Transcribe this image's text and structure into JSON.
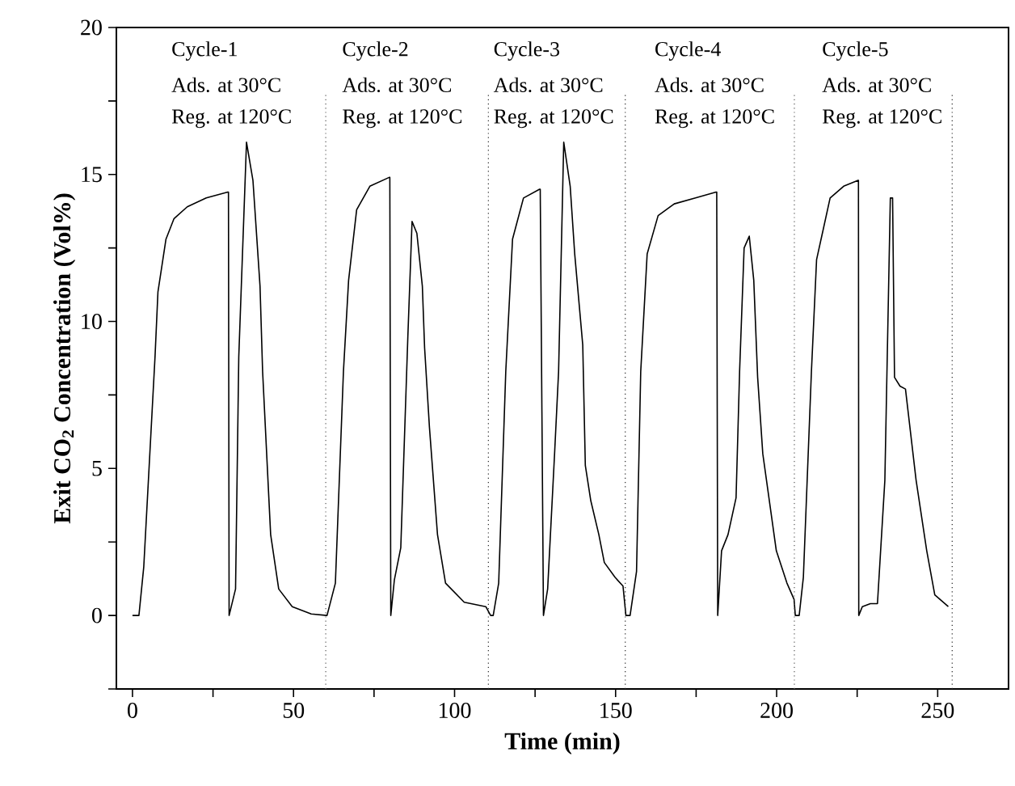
{
  "chart_data": {
    "type": "line",
    "xlabel": "Time (min)",
    "ylabel": "Exit CO$_{2}$ Concentration (Vol%)",
    "xlim": [
      -5,
      272
    ],
    "ylim": [
      -2.5,
      20
    ],
    "xticks": [
      0,
      {
        "value": 25,
        "label": null
      },
      50,
      {
        "value": 75,
        "label": null
      },
      100,
      {
        "value": 125,
        "label": null
      },
      150,
      {
        "value": 175,
        "label": null
      },
      200,
      {
        "value": 225,
        "label": null
      },
      250
    ],
    "yticks": [
      {
        "value": -2.5,
        "label": null
      },
      0,
      {
        "value": 2.5,
        "label": null
      },
      5,
      {
        "value": 7.5,
        "label": null
      },
      10,
      {
        "value": 12.5,
        "label": null
      },
      15,
      {
        "value": 17.5,
        "label": null
      },
      20
    ],
    "marker": "none",
    "line_style": "solid",
    "annotations": [
      "Cycle-1",
      "Ads. at 30°C",
      "Reg. at 120°C",
      "Cycle-2",
      "Ads. at 30°C",
      "Reg. at 120°C",
      "Cycle-3",
      "Ads. at 30°C",
      "Reg. at 120°C",
      "Cycle-4",
      "Ads. at 30°C",
      "Reg. at 120°C",
      "Cycle-5",
      "Ads. at 30°C",
      "Reg. at 120°C"
    ],
    "ref_lines": [
      {
        "axis": "x",
        "value": 60,
        "color": "#555555",
        "line_style": "dotted"
      },
      {
        "axis": "x",
        "value": 110.5,
        "color": "#222222",
        "line_style": "dotted"
      },
      {
        "axis": "x",
        "value": 153,
        "color": "#222222",
        "line_style": "dotted"
      },
      {
        "axis": "x",
        "value": 205.5,
        "color": "#555555",
        "line_style": "dotted"
      },
      {
        "axis": "x",
        "value": 254.5,
        "color": "#222222",
        "line_style": "dotted"
      }
    ],
    "series": [
      {
        "color": "#000000",
        "x": [
          0,
          2,
          3.5,
          7,
          7.9,
          10.4,
          12.9,
          17,
          22.9,
          29.6,
          29.8,
          30,
          32,
          33,
          35.4,
          37.4,
          39.6,
          40.4,
          42.9,
          45.4,
          49.6,
          55.5,
          60.4,
          63,
          65.5,
          67.1,
          69.6,
          73.7,
          79.7,
          79.9,
          80.2,
          81.3,
          83.3,
          85.5,
          86.8,
          88.3,
          90,
          90.7,
          92.2,
          94.7,
          97.2,
          103,
          109.7,
          111.2,
          112,
          113.7,
          115.9,
          118,
          121.4,
          126.4,
          126.6,
          127.6,
          128.9,
          131.1,
          132.3,
          133.9,
          135.9,
          137.3,
          139.8,
          140.6,
          142.3,
          144.8,
          146.5,
          149.8,
          152.3,
          153.2,
          154.5,
          156.5,
          157.8,
          159.8,
          163.2,
          168.2,
          174.8,
          181.2,
          181.4,
          181.7,
          182.9,
          184.9,
          187.4,
          188.5,
          189.9,
          191.5,
          192.9,
          194.1,
          195.7,
          199.9,
          203.2,
          205.4,
          205.8,
          207,
          208.3,
          210.8,
          212.4,
          216.6,
          220.8,
          225.3,
          225.4,
          225.5,
          226.6,
          229.1,
          231.3,
          233.6,
          235.3,
          236,
          236.6,
          238.3,
          240,
          243.3,
          246.6,
          249.1,
          253.3
        ],
        "values": [
          0,
          0,
          1.65,
          8.8,
          11.0,
          12.8,
          13.5,
          13.9,
          14.2,
          14.4,
          14.4,
          0,
          0.9,
          8.8,
          16.1,
          14.8,
          11.2,
          8.3,
          2.75,
          0.9,
          0.3,
          0.05,
          0,
          1.1,
          8.3,
          11.4,
          13.8,
          14.6,
          14.9,
          14.9,
          0,
          1.2,
          2.3,
          9.5,
          13.4,
          13.0,
          11.2,
          9.1,
          6.4,
          2.75,
          1.1,
          0.45,
          0.3,
          0,
          0,
          1.1,
          8.3,
          12.8,
          14.2,
          14.5,
          14.5,
          0,
          0.9,
          5.6,
          8.3,
          16.1,
          14.6,
          12.3,
          9.2,
          5.1,
          3.9,
          2.75,
          1.8,
          1.3,
          1.0,
          0,
          0,
          1.5,
          8.3,
          12.3,
          13.6,
          14.0,
          14.2,
          14.4,
          14.4,
          0,
          2.2,
          2.75,
          4.0,
          8.3,
          12.5,
          12.9,
          11.4,
          8.1,
          5.5,
          2.2,
          1.1,
          0.55,
          0,
          0,
          1.3,
          8.3,
          12.1,
          14.2,
          14.6,
          14.8,
          14.8,
          0,
          0.3,
          0.4,
          0.4,
          4.6,
          14.2,
          14.2,
          8.1,
          7.8,
          7.7,
          4.6,
          2.2,
          0.7,
          0.3
        ]
      }
    ]
  }
}
